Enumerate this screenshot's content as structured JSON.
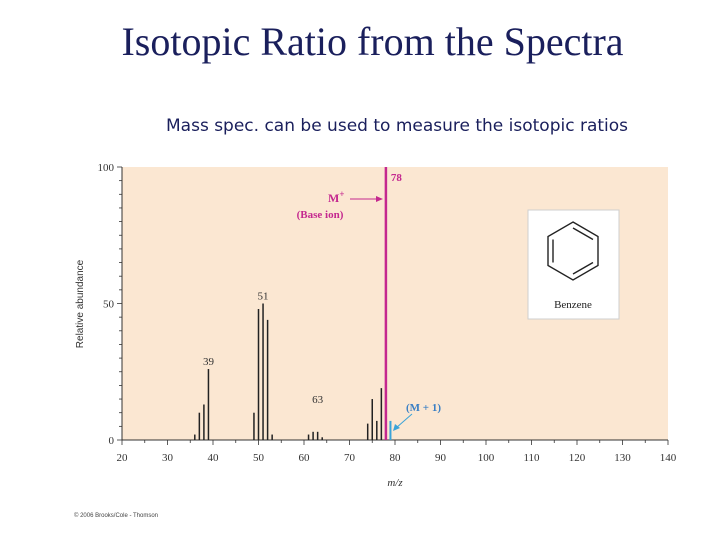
{
  "slide": {
    "title": "Isotopic Ratio from the Spectra",
    "subtitle": "Mass spec. can be used to measure the isotopic ratios",
    "copyright": "© 2006 Brooks/Cole - Thomson"
  },
  "colors": {
    "plot_bg": "#fbe7d2",
    "base_peak": "#c4288f",
    "m1_peak": "#3aa3d8",
    "annotation": "#c4288f",
    "m1_label": "#3a7fc4",
    "peak": "#222222"
  },
  "molecule": {
    "name": "Benzene",
    "icon": "benzene-ring-structure"
  },
  "chart_data": {
    "type": "bar",
    "xlabel": "m/z",
    "ylabel": "Relative abundance",
    "xlim": [
      20,
      140
    ],
    "ylim": [
      0,
      100
    ],
    "xticks": [
      20,
      30,
      40,
      50,
      60,
      70,
      80,
      90,
      100,
      110,
      120,
      130,
      140
    ],
    "yticks": [
      0,
      50,
      100
    ],
    "peaks": [
      {
        "x": 36,
        "y": 2
      },
      {
        "x": 37,
        "y": 10
      },
      {
        "x": 38,
        "y": 13
      },
      {
        "x": 39,
        "y": 26
      },
      {
        "x": 49,
        "y": 10
      },
      {
        "x": 50,
        "y": 48
      },
      {
        "x": 51,
        "y": 50
      },
      {
        "x": 52,
        "y": 44
      },
      {
        "x": 53,
        "y": 2
      },
      {
        "x": 61,
        "y": 2
      },
      {
        "x": 62,
        "y": 3
      },
      {
        "x": 63,
        "y": 3
      },
      {
        "x": 64,
        "y": 1
      },
      {
        "x": 74,
        "y": 6
      },
      {
        "x": 75,
        "y": 15
      },
      {
        "x": 76,
        "y": 7
      },
      {
        "x": 77,
        "y": 19
      },
      {
        "x": 78,
        "y": 100,
        "kind": "base"
      },
      {
        "x": 79,
        "y": 7,
        "kind": "m1"
      }
    ],
    "peak_labels": [
      {
        "x": 39,
        "y": 26,
        "text": "39"
      },
      {
        "x": 51,
        "y": 50,
        "text": "51"
      },
      {
        "x": 63,
        "y": 12,
        "text": "63"
      },
      {
        "x": 78,
        "y": 100,
        "text": "78"
      }
    ],
    "annotations": {
      "base": {
        "line1": "M",
        "superscript": "+",
        "line2": "(Base ion)"
      },
      "m1": {
        "text": "(M + 1)"
      }
    }
  }
}
